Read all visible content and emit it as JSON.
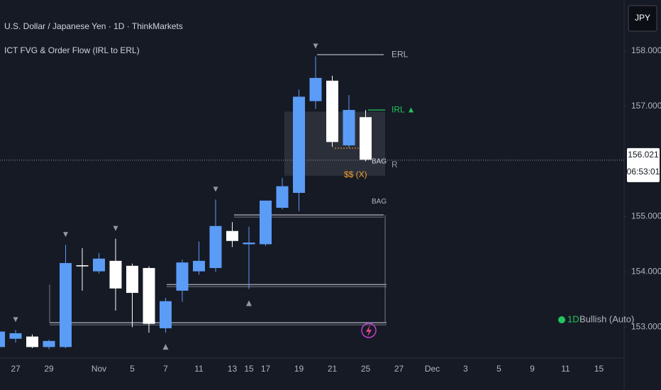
{
  "chart_data": {
    "type": "candlestick",
    "title": "U.S. Dollar / Japanese Yen · 1D · ThinkMarkets",
    "indicator": "ICT FVG & Order Flow (IRL to ERL)",
    "currency": "JPY",
    "categories": [
      null,
      "27",
      null,
      "29",
      null,
      null,
      "Nov",
      null,
      "5",
      null,
      "7",
      null,
      "11",
      null,
      "13",
      "15",
      "17",
      null,
      "19",
      null,
      "21",
      null,
      "25",
      null,
      "27",
      null,
      "Dec",
      null,
      "3",
      null,
      "5",
      null,
      "9",
      null,
      "11",
      null,
      "15",
      null
    ],
    "open": [
      152.64,
      152.79,
      152.83,
      152.64,
      152.64,
      154.12,
      154.01,
      154.2,
      154.11,
      154.07,
      152.98,
      153.66,
      154.01,
      154.07,
      154.74,
      154.5,
      154.5,
      155.16,
      155.43,
      157.09,
      157.46,
      156.29,
      156.8,
      null,
      null,
      null,
      null,
      null,
      null,
      null,
      null,
      null,
      null,
      null,
      null,
      null,
      null,
      null
    ],
    "high": [
      152.95,
      152.95,
      152.87,
      152.77,
      154.49,
      154.43,
      154.34,
      154.6,
      154.15,
      154.1,
      153.53,
      154.22,
      154.55,
      155.31,
      154.9,
      154.82,
      155.29,
      155.7,
      157.3,
      157.9,
      157.55,
      157.2,
      156.93,
      null,
      null,
      null,
      null,
      null,
      null,
      null,
      null,
      null,
      null,
      null,
      null,
      null,
      null,
      null
    ],
    "low": [
      152.6,
      152.72,
      152.62,
      152.6,
      152.62,
      153.66,
      153.97,
      153.3,
      153.0,
      152.9,
      152.9,
      153.46,
      153.95,
      154.0,
      154.45,
      153.69,
      154.47,
      155.13,
      155.1,
      156.95,
      156.26,
      156.25,
      156.0,
      null,
      null,
      null,
      null,
      null,
      null,
      null,
      null,
      null,
      null,
      null,
      null,
      null,
      null,
      null
    ],
    "close": [
      152.92,
      152.89,
      152.64,
      152.75,
      154.16,
      154.1,
      154.24,
      153.7,
      153.62,
      153.06,
      153.47,
      154.17,
      154.2,
      154.83,
      154.56,
      154.53,
      155.29,
      155.55,
      157.17,
      157.51,
      156.35,
      156.93,
      156.03,
      null,
      null,
      null,
      null,
      null,
      null,
      null,
      null,
      null,
      null,
      null,
      null,
      null,
      null,
      null
    ],
    "up_color": "#5b9cf6",
    "down_color": "#ffffff",
    "ylim": [
      152.44,
      158.92
    ],
    "yticks": [
      {
        "value": 153,
        "label": "153.000"
      },
      {
        "value": 154,
        "label": "154.000"
      },
      {
        "value": 155,
        "label": "155.000"
      },
      {
        "value": 157,
        "label": "157.000"
      },
      {
        "value": 158,
        "label": "158.000"
      }
    ],
    "last_price": {
      "value": 156.021,
      "label": "156.021"
    },
    "countdown": "06:53:01",
    "zone": {
      "top": 156.9,
      "bottom": 155.74
    },
    "levels": [
      {
        "label": "ERL",
        "value": 157.93,
        "color": "#b2b5be"
      },
      {
        "label": "IRL ▲",
        "value": 156.93,
        "color": "#22c55e"
      },
      {
        "label": "BAG",
        "value": 155.03,
        "color": "#b2b5be"
      },
      {
        "value": 153.77,
        "color": "#b2b5be"
      },
      {
        "value": 153.08,
        "color": "#b2b5be"
      }
    ],
    "annotations": [
      {
        "text": "BAG",
        "color": "#d1d4dc"
      },
      {
        "text": "R",
        "color": "#9598a1"
      },
      {
        "text": "$$ (X)",
        "color": "#f0a030"
      }
    ],
    "status": {
      "timeframe": "1D",
      "label": "Bullish (Auto)",
      "color": "#22c55e"
    }
  }
}
